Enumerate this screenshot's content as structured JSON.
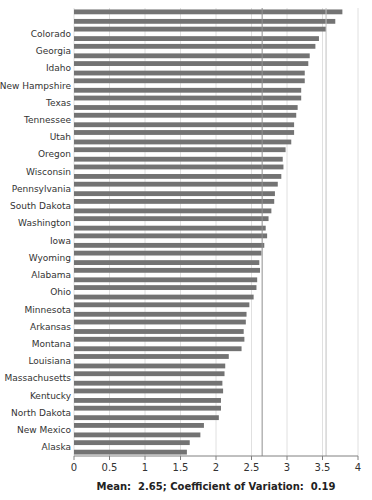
{
  "chart_data": {
    "type": "bar",
    "orientation": "horizontal",
    "x_label": "Mean:  2.65; Coefficient of Variation:  0.19",
    "categories": [
      null,
      "Colorado",
      "Georgia",
      "Idaho",
      "New Hampshire",
      "Texas",
      "Tennessee",
      "Utah",
      "Oregon",
      "Wisconsin",
      "Pennsylvania",
      "South Dakota",
      "Washington",
      "Iowa",
      "Wyoming",
      "Alabama",
      "Ohio",
      "Minnesota",
      "Arkansas",
      "Montana",
      "Louisiana",
      "Massachusetts",
      "Kentucky",
      "North Dakota",
      "New Mexico",
      "Alaska"
    ],
    "series": [
      {
        "color": "#737373",
        "values": [
          3.78,
          3.55,
          3.4,
          3.3,
          3.25,
          3.2,
          3.13,
          3.1,
          2.98,
          2.95,
          2.87,
          2.82,
          2.74,
          2.72,
          2.64,
          2.62,
          2.57,
          2.47,
          2.42,
          2.4,
          2.18,
          2.12,
          2.1,
          2.07,
          1.83,
          1.63
        ]
      },
      {
        "color": "#737373",
        "values": [
          3.68,
          3.45,
          3.32,
          3.25,
          3.2,
          3.15,
          3.1,
          3.06,
          2.94,
          2.92,
          2.83,
          2.78,
          2.7,
          2.68,
          2.61,
          2.58,
          2.53,
          2.43,
          2.39,
          2.36,
          2.13,
          2.09,
          2.07,
          2.04,
          1.78,
          1.59
        ]
      }
    ],
    "mean_line": 2.65,
    "vertical_line": 3.55,
    "xlim": [
      0,
      4
    ],
    "xticks": [
      0,
      0.5,
      1,
      1.5,
      2,
      2.5,
      3,
      3.5,
      4
    ],
    "grid": true
  }
}
